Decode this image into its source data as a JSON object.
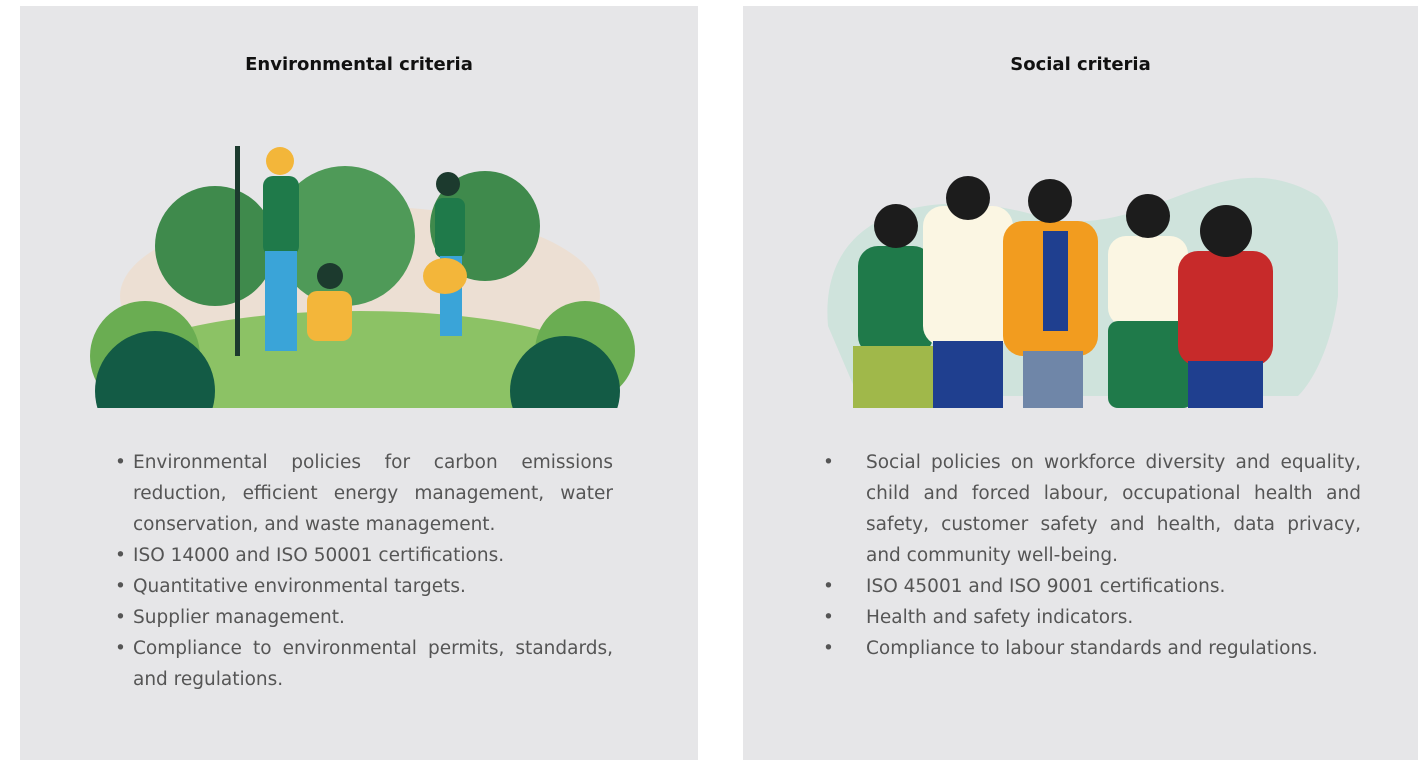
{
  "cards": [
    {
      "title": "Environmental criteria",
      "items": [
        "Environmental policies for carbon emissions reduction, efficient energy management, water conservation, and waste management.",
        "ISO 14000 and ISO 50001 certifications.",
        "Quantitative environmental targets.",
        "Supplier management.",
        "Compliance to environmental permits, standards, and regulations."
      ]
    },
    {
      "title": "Social criteria",
      "items": [
        "Social policies on workforce diversity and equality, child and forced labour, occupational health and safety, customer safety and health, data privacy, and community well-being.",
        "ISO 45001 and ISO 9001 certifications.",
        "Health and safety indicators.",
        "Compliance to labour standards and regulations."
      ]
    }
  ]
}
